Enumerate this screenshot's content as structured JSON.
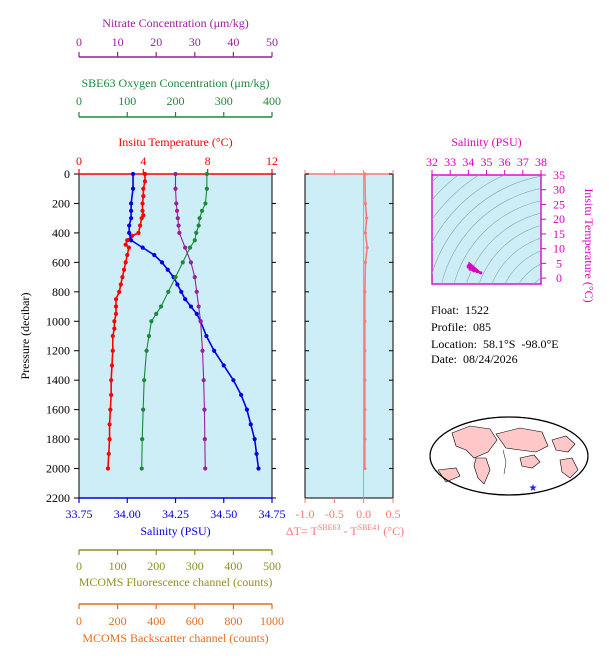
{
  "colors": {
    "plot_bg": "#cdeef7",
    "temperature": "#ff0000",
    "salinity": "#0000e6",
    "oxygen": "#1a8a3a",
    "nitrate": "#9a1f9a",
    "fluorescence": "#8f8f1e",
    "backscatter": "#e66c1a",
    "delta_t": "#ff7777",
    "ts_diagram": "#e000c0"
  },
  "float_info": {
    "float": "Float:  1522",
    "profile": "Profile:  085",
    "location": "Location:  58.1°S  -98.0°E",
    "date": "Date:  08/24/2026"
  },
  "chart_data": [
    {
      "type": "line",
      "name": "main-profile",
      "ylabel": "Pressure (decibar)",
      "ylim": [
        2200,
        0
      ],
      "yticks": [
        0,
        200,
        400,
        600,
        800,
        1000,
        1200,
        1400,
        1600,
        1800,
        2000,
        2200
      ],
      "axes": {
        "temperature": {
          "label": "Insitu Temperature (°C)",
          "range": [
            0,
            12
          ],
          "ticks": [
            0,
            4,
            8,
            12
          ]
        },
        "salinity": {
          "label": "Salinity (PSU)",
          "range": [
            33.75,
            34.75
          ],
          "ticks": [
            "33.75",
            "34.00",
            "34.25",
            "34.50",
            "34.75"
          ]
        },
        "oxygen": {
          "label": "SBE63 Oxygen Concentration (μm/kg)",
          "range": [
            0,
            400
          ],
          "ticks": [
            0,
            100,
            200,
            300,
            400
          ]
        },
        "nitrate": {
          "label": "Nitrate Concentration (μm/kg)",
          "range": [
            0,
            50
          ],
          "ticks": [
            0,
            10,
            20,
            30,
            40,
            50
          ]
        },
        "fluorescence": {
          "label": "MCOMS Fluorescence channel (counts)",
          "range": [
            0,
            500
          ],
          "ticks": [
            0,
            100,
            200,
            300,
            400,
            500
          ]
        },
        "backscatter": {
          "label": "MCOMS Backscatter channel (counts)",
          "range": [
            0,
            1000
          ],
          "ticks": [
            0,
            200,
            400,
            600,
            800,
            1000
          ]
        }
      },
      "series": [
        {
          "key": "temperature",
          "axis": "temperature",
          "points": [
            [
              4.1,
              0
            ],
            [
              4.1,
              50
            ],
            [
              4.0,
              100
            ],
            [
              4.0,
              150
            ],
            [
              3.95,
              200
            ],
            [
              3.95,
              250
            ],
            [
              4.0,
              280
            ],
            [
              3.9,
              300
            ],
            [
              3.8,
              350
            ],
            [
              3.7,
              400
            ],
            [
              3.3,
              420
            ],
            [
              3.0,
              450
            ],
            [
              2.9,
              480
            ],
            [
              3.1,
              500
            ],
            [
              3.0,
              550
            ],
            [
              2.9,
              600
            ],
            [
              2.8,
              650
            ],
            [
              2.7,
              700
            ],
            [
              2.6,
              750
            ],
            [
              2.5,
              800
            ],
            [
              2.3,
              850
            ],
            [
              2.3,
              900
            ],
            [
              2.3,
              950
            ],
            [
              2.2,
              1000
            ],
            [
              2.2,
              1050
            ],
            [
              2.1,
              1100
            ],
            [
              2.1,
              1200
            ],
            [
              2.05,
              1300
            ],
            [
              2.0,
              1400
            ],
            [
              2.0,
              1500
            ],
            [
              1.95,
              1600
            ],
            [
              1.9,
              1700
            ],
            [
              1.9,
              1800
            ],
            [
              1.85,
              1900
            ],
            [
              1.8,
              2000
            ]
          ]
        },
        {
          "key": "salinity",
          "axis": "salinity",
          "points": [
            [
              34.03,
              0
            ],
            [
              34.03,
              100
            ],
            [
              34.02,
              200
            ],
            [
              34.02,
              250
            ],
            [
              34.02,
              300
            ],
            [
              34.01,
              350
            ],
            [
              34.01,
              400
            ],
            [
              34.02,
              450
            ],
            [
              34.08,
              500
            ],
            [
              34.14,
              550
            ],
            [
              34.18,
              600
            ],
            [
              34.21,
              650
            ],
            [
              34.24,
              700
            ],
            [
              34.26,
              750
            ],
            [
              34.28,
              800
            ],
            [
              34.3,
              850
            ],
            [
              34.33,
              900
            ],
            [
              34.36,
              950
            ],
            [
              34.38,
              1000
            ],
            [
              34.41,
              1100
            ],
            [
              34.45,
              1200
            ],
            [
              34.5,
              1300
            ],
            [
              34.55,
              1400
            ],
            [
              34.59,
              1500
            ],
            [
              34.62,
              1600
            ],
            [
              34.64,
              1700
            ],
            [
              34.66,
              1800
            ],
            [
              34.67,
              1900
            ],
            [
              34.68,
              2000
            ]
          ]
        },
        {
          "key": "oxygen",
          "axis": "oxygen",
          "points": [
            [
              265,
              0
            ],
            [
              265,
              100
            ],
            [
              262,
              200
            ],
            [
              255,
              250
            ],
            [
              250,
              300
            ],
            [
              248,
              350
            ],
            [
              243,
              400
            ],
            [
              240,
              450
            ],
            [
              230,
              500
            ],
            [
              215,
              600
            ],
            [
              200,
              700
            ],
            [
              185,
              800
            ],
            [
              170,
              900
            ],
            [
              160,
              950
            ],
            [
              150,
              1000
            ],
            [
              145,
              1100
            ],
            [
              140,
              1200
            ],
            [
              135,
              1400
            ],
            [
              133,
              1600
            ],
            [
              131,
              1800
            ],
            [
              130,
              2000
            ]
          ]
        },
        {
          "key": "nitrate",
          "axis": "nitrate",
          "points": [
            [
              25.0,
              0
            ],
            [
              25.0,
              100
            ],
            [
              25.2,
              200
            ],
            [
              25.4,
              250
            ],
            [
              25.6,
              300
            ],
            [
              25.8,
              350
            ],
            [
              26.0,
              400
            ],
            [
              27.5,
              500
            ],
            [
              29.0,
              600
            ],
            [
              30.0,
              700
            ],
            [
              30.5,
              800
            ],
            [
              31.0,
              900
            ],
            [
              31.5,
              1000
            ],
            [
              32.0,
              1200
            ],
            [
              32.3,
              1400
            ],
            [
              32.5,
              1600
            ],
            [
              32.6,
              1800
            ],
            [
              32.7,
              2000
            ]
          ]
        },
        {
          "key": "fluorescence",
          "axis": "fluorescence",
          "points": [
            [
              0,
              0
            ],
            [
              0,
              2000
            ]
          ]
        },
        {
          "key": "backscatter",
          "axis": "backscatter",
          "points": [
            [
              0,
              0
            ],
            [
              0,
              2000
            ]
          ]
        }
      ]
    },
    {
      "type": "line",
      "name": "delta-t-panel",
      "xlabel": "ΔT= T^SBE63 - T^SBE41 (°C)",
      "xlim": [
        -1.0,
        0.5
      ],
      "xticks": [
        "-1.0",
        "-0.5",
        "0.0",
        "0.5"
      ],
      "ylim": [
        2200,
        0
      ],
      "points": [
        [
          0.02,
          0
        ],
        [
          0.03,
          200
        ],
        [
          0.05,
          300
        ],
        [
          0.03,
          400
        ],
        [
          0.06,
          500
        ],
        [
          0.03,
          600
        ],
        [
          0.02,
          800
        ],
        [
          0.02,
          1000
        ],
        [
          0.02,
          1200
        ],
        [
          0.02,
          1400
        ],
        [
          0.02,
          1600
        ],
        [
          0.02,
          1800
        ],
        [
          0.02,
          2000
        ]
      ]
    },
    {
      "type": "scatter",
      "name": "ts-diagram",
      "title": "Salinity (PSU)",
      "ylabel": "Insitu Temperature (°C)",
      "xlim": [
        32,
        38
      ],
      "ylim": [
        -2,
        35
      ],
      "xticks": [
        "32",
        "33",
        "34",
        "35",
        "36",
        "37",
        "38"
      ],
      "yticks": [
        "0",
        "5",
        "10",
        "15",
        "20",
        "25",
        "30",
        "35"
      ],
      "points": [
        [
          34.0,
          4.1
        ],
        [
          34.0,
          3.8
        ],
        [
          34.1,
          3.0
        ],
        [
          34.3,
          2.5
        ],
        [
          34.5,
          2.2
        ],
        [
          34.68,
          1.8
        ]
      ]
    }
  ]
}
